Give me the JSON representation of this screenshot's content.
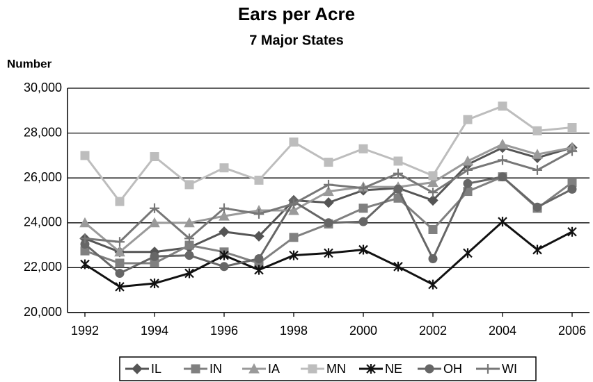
{
  "chart_data": {
    "type": "line",
    "title": "Ears per Acre",
    "subtitle": "7 Major States",
    "y_label": "Number",
    "x": [
      1992,
      1993,
      1994,
      1995,
      1996,
      1997,
      1998,
      1999,
      2000,
      2001,
      2002,
      2003,
      2004,
      2005,
      2006
    ],
    "xlim": [
      1991.5,
      2006.5
    ],
    "xticks": [
      1992,
      1994,
      1996,
      1998,
      2000,
      2002,
      2004,
      2006
    ],
    "ylim": [
      20000,
      30000
    ],
    "yticks": [
      {
        "value": 20000,
        "label": "20,000"
      },
      {
        "value": 22000,
        "label": "22,000"
      },
      {
        "value": 24000,
        "label": "24,000"
      },
      {
        "value": 26000,
        "label": "26,000"
      },
      {
        "value": 28000,
        "label": "28,000"
      },
      {
        "value": 30000,
        "label": "30,000"
      }
    ],
    "grid": true,
    "legend": "bottom",
    "series": [
      {
        "name": "IL",
        "color": "#555555",
        "marker": "diamond",
        "values": [
          23300,
          22700,
          22700,
          22900,
          23600,
          23400,
          25000,
          24900,
          25450,
          25550,
          25000,
          26600,
          27350,
          26900,
          27350
        ]
      },
      {
        "name": "IN",
        "color": "#808080",
        "marker": "square",
        "values": [
          22750,
          22200,
          22200,
          23000,
          22700,
          22200,
          23350,
          23950,
          24650,
          25100,
          23700,
          25400,
          26050,
          24650,
          25800
        ]
      },
      {
        "name": "IA",
        "color": "#9a9a9a",
        "marker": "triangle",
        "values": [
          24000,
          22700,
          24000,
          24000,
          24300,
          24550,
          24550,
          25400,
          25600,
          25600,
          25800,
          26750,
          27500,
          27050,
          27350
        ]
      },
      {
        "name": "MN",
        "color": "#bdbdbd",
        "marker": "square",
        "values": [
          27000,
          24950,
          26950,
          25700,
          26450,
          25900,
          27600,
          26700,
          27300,
          26750,
          26100,
          28600,
          29200,
          28100,
          28250
        ]
      },
      {
        "name": "NE",
        "color": "#111111",
        "marker": "star",
        "values": [
          22150,
          21150,
          21300,
          21750,
          22550,
          21900,
          22550,
          22650,
          22800,
          22050,
          21250,
          22650,
          24050,
          22800,
          23600
        ]
      },
      {
        "name": "OH",
        "color": "#666666",
        "marker": "circle",
        "values": [
          23050,
          21750,
          22500,
          22550,
          22050,
          22400,
          24950,
          24000,
          24050,
          25500,
          22400,
          25750,
          26050,
          24700,
          25500
        ]
      },
      {
        "name": "WI",
        "color": "#777777",
        "marker": "plus",
        "values": [
          23300,
          23150,
          24650,
          23300,
          24650,
          24400,
          24850,
          25700,
          25550,
          26200,
          25350,
          26350,
          26800,
          26350,
          27200
        ]
      }
    ]
  }
}
